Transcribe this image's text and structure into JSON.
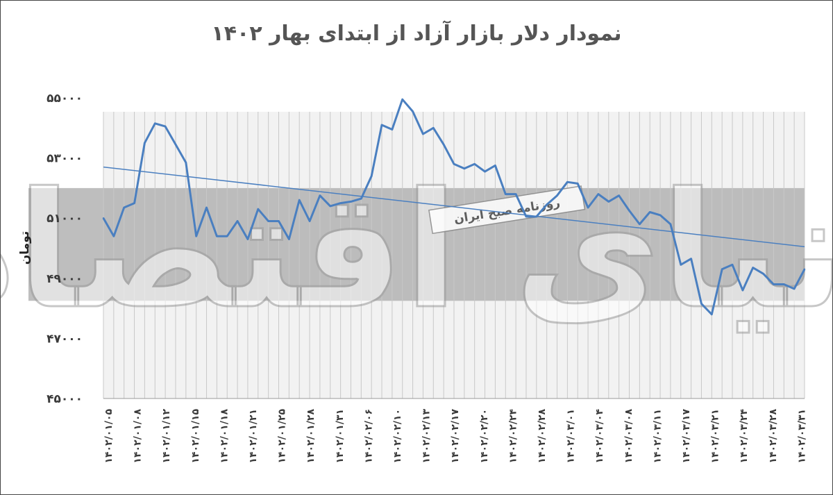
{
  "chart_data": {
    "type": "line",
    "title": "نمودار دلار بازار آزاد از ابتدای بهار ۱۴۰۲",
    "ylabel": "تومان",
    "ylim": [
      45000,
      55000
    ],
    "yticks": [
      "۴۵۰۰۰",
      "۴۷۰۰۰",
      "۴۹۰۰۰",
      "۵۱۰۰۰",
      "۵۳۰۰۰",
      "۵۵۰۰۰"
    ],
    "yticks_values": [
      45000,
      47000,
      49000,
      51000,
      53000,
      55000
    ],
    "xtick_labels": [
      "۱۴۰۲/۰۱/۰۵",
      "۱۴۰۲/۰۱/۰۸",
      "۱۴۰۲/۰۱/۱۲",
      "۱۴۰۲/۰۱/۱۵",
      "۱۴۰۲/۰۱/۱۸",
      "۱۴۰۲/۰۱/۲۱",
      "۱۴۰۲/۰۱/۲۵",
      "۱۴۰۲/۰۱/۲۸",
      "۱۴۰۲/۰۱/۳۱",
      "۱۴۰۲/۰۲/۰۶",
      "۱۴۰۲/۰۲/۱۰",
      "۱۴۰۲/۰۲/۱۳",
      "۱۴۰۲/۰۲/۱۷",
      "۱۴۰۲/۰۲/۲۰",
      "۱۴۰۲/۰۲/۲۴",
      "۱۴۰۲/۰۲/۲۸",
      "۱۴۰۲/۰۳/۰۱",
      "۱۴۰۲/۰۳/۰۴",
      "۱۴۰۲/۰۳/۰۸",
      "۱۴۰۲/۰۳/۱۱",
      "۱۴۰۲/۰۳/۱۷",
      "۱۴۰۲/۰۳/۲۱",
      "۱۴۰۲/۰۳/۲۴",
      "۱۴۰۲/۰۳/۲۸",
      "۱۴۰۲/۰۳/۳۱"
    ],
    "series": [
      {
        "type": "line",
        "color": "#4a7fc0",
        "values": [
          51000,
          50400,
          51350,
          51500,
          53500,
          54150,
          54050,
          53450,
          52850,
          50400,
          51350,
          50400,
          50400,
          50900,
          50300,
          51300,
          50900,
          50900,
          50300,
          51600,
          50900,
          51750,
          51400,
          51500,
          51550,
          51650,
          52400,
          54100,
          53950,
          54950,
          54550,
          53800,
          54000,
          53450,
          52800,
          52650,
          52800,
          52550,
          52750,
          51800,
          51800,
          51050,
          51050,
          51450,
          51750,
          52200,
          52150,
          51350,
          51800,
          51550,
          51750,
          51250,
          50800,
          51200,
          51100,
          50800,
          49450,
          49650,
          48150,
          47800,
          49300,
          49450,
          48600,
          49350,
          49150,
          48800,
          48800,
          48650,
          49300
        ]
      },
      {
        "type": "trendline",
        "color": "#4a7fc0",
        "start": 52700,
        "end": 50050
      }
    ],
    "band": {
      "from": 48250,
      "to": 52000,
      "color": "#b3b3b3"
    },
    "plot_background": "#f2f2f2",
    "grid": "vertical"
  },
  "watermark": {
    "big_text": "دنیای اقتصاد",
    "banner": "روزنامه صبح ایران"
  }
}
